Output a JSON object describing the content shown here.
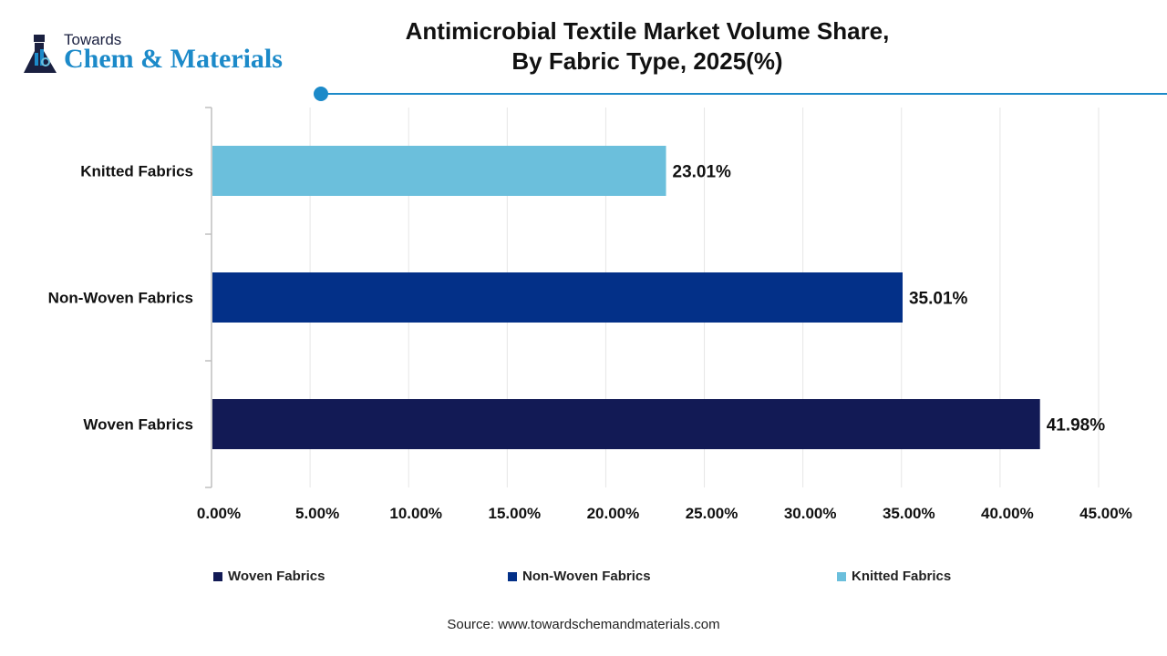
{
  "logo": {
    "line1": "Towards",
    "line2": "Chem & Materials"
  },
  "chart_data": {
    "type": "bar",
    "orientation": "horizontal",
    "title": "Antimicrobial Textile Market Volume Share, By Fabric Type, 2025(%)",
    "title_lines": [
      "Antimicrobial Textile Market Volume Share,",
      "By Fabric Type, 2025(%)"
    ],
    "categories": [
      "Knitted Fabrics",
      "Non-Woven Fabrics",
      "Woven Fabrics"
    ],
    "values": [
      23.01,
      35.01,
      41.98
    ],
    "data_labels": [
      "23.01%",
      "35.01%",
      "41.98%"
    ],
    "colors": [
      "#6bbfdc",
      "#033088",
      "#121a55"
    ],
    "xlim": [
      0,
      45
    ],
    "x_ticks": [
      "0.00%",
      "5.00%",
      "10.00%",
      "15.00%",
      "20.00%",
      "25.00%",
      "30.00%",
      "35.00%",
      "40.00%",
      "45.00%"
    ],
    "grid": true,
    "legend_position": "bottom",
    "legend": [
      {
        "label": "Woven Fabrics",
        "color": "#121a55"
      },
      {
        "label": "Non-Woven Fabrics",
        "color": "#033088"
      },
      {
        "label": "Knitted Fabrics",
        "color": "#6bbfdc"
      }
    ]
  },
  "source": "Source: www.towardschemandmaterials.com"
}
